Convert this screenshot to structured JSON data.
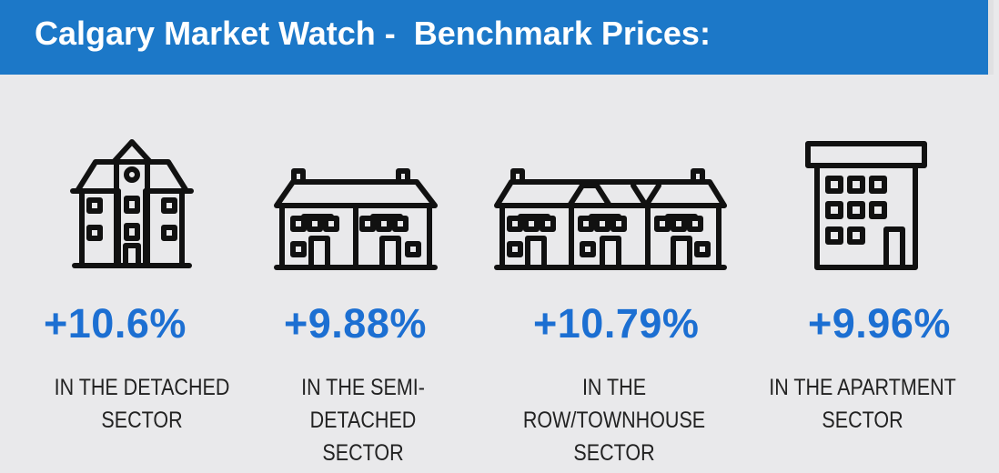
{
  "header": {
    "title": "Calgary Market Watch -  Benchmark Prices:"
  },
  "colors": {
    "header_bg": "#1c78c8",
    "accent": "#1c6fd2",
    "background": "#e9e9eb"
  },
  "sectors": [
    {
      "icon": "detached-house-icon",
      "change": "+10.6%",
      "line1": "IN THE DETACHED",
      "line2": "SECTOR"
    },
    {
      "icon": "semi-detached-house-icon",
      "change": "+9.88%",
      "line1": "IN THE SEMI-DETACHED",
      "line2": "SECTOR"
    },
    {
      "icon": "townhouse-icon",
      "change": "+10.79%",
      "line1": "IN THE ROW/TOWNHOUSE",
      "line2": "SECTOR"
    },
    {
      "icon": "apartment-building-icon",
      "change": "+9.96%",
      "line1": "IN THE APARTMENT",
      "line2": "SECTOR"
    }
  ]
}
